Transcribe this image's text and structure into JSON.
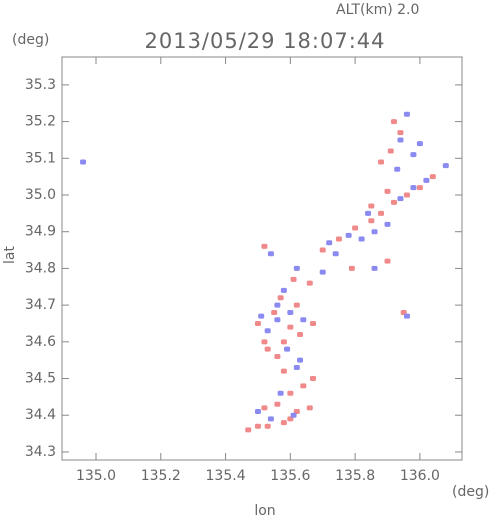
{
  "chart_data": {
    "type": "scatter",
    "title": "2013/05/29 18:07:44",
    "subtitle": "ALT(km) 2.0",
    "x_label": "lon",
    "x_unit": "(deg)",
    "y_label": "lat",
    "y_unit": "(deg)",
    "xlim": [
      134.895,
      136.13
    ],
    "ylim": [
      34.278,
      35.376
    ],
    "xticks": [
      {
        "value": 135.0,
        "label": "135.0"
      },
      135.2,
      135.4,
      135.6,
      135.8,
      {
        "value": 136.0,
        "label": "136.0"
      }
    ],
    "yticks": [
      {
        "value": 34.3,
        "label": "34.3"
      },
      34.4,
      34.5,
      34.6,
      34.7,
      34.8,
      34.9,
      {
        "value": 35.0,
        "label": "35.0"
      },
      35.1,
      35.2,
      35.3
    ],
    "series": [
      {
        "color": "#f08a8a",
        "x": [
          135.47,
          135.5,
          135.53,
          135.58,
          135.6,
          135.52,
          135.56,
          135.62,
          135.66,
          135.64,
          135.67,
          135.6,
          135.58,
          135.56,
          135.52,
          135.5,
          135.55,
          135.57,
          135.6,
          135.63,
          135.58,
          135.53,
          135.62,
          135.61,
          135.66,
          135.7,
          135.75,
          135.8,
          135.85,
          135.88,
          135.92,
          135.96,
          136.0,
          136.04,
          135.85,
          135.9,
          135.88,
          135.91,
          135.94,
          135.92,
          135.95,
          135.9,
          135.79,
          135.52,
          135.67
        ],
        "values": [
          34.36,
          34.37,
          34.37,
          34.38,
          34.39,
          34.42,
          34.43,
          34.41,
          34.42,
          34.48,
          34.5,
          34.46,
          34.52,
          34.56,
          34.6,
          34.65,
          34.68,
          34.72,
          34.64,
          34.62,
          34.6,
          34.58,
          34.7,
          34.77,
          34.76,
          34.85,
          34.88,
          34.91,
          34.93,
          34.95,
          34.98,
          35.0,
          35.02,
          35.05,
          34.97,
          35.01,
          35.09,
          35.12,
          35.17,
          35.2,
          34.68,
          34.82,
          34.8,
          34.86,
          34.65
        ]
      },
      {
        "color": "#8a8af0",
        "x": [
          134.96,
          135.5,
          135.54,
          135.61,
          135.57,
          135.62,
          135.59,
          135.53,
          135.51,
          135.56,
          135.6,
          135.64,
          135.56,
          135.58,
          135.62,
          135.54,
          135.7,
          135.72,
          135.78,
          135.82,
          135.86,
          135.9,
          135.84,
          135.94,
          135.98,
          136.02,
          136.08,
          135.93,
          135.98,
          136.0,
          135.96,
          135.94,
          135.96,
          135.86,
          135.74,
          135.63
        ],
        "values": [
          35.09,
          34.41,
          34.39,
          34.4,
          34.46,
          34.53,
          34.58,
          34.63,
          34.67,
          34.66,
          34.68,
          34.66,
          34.7,
          34.74,
          34.8,
          34.84,
          34.79,
          34.87,
          34.89,
          34.88,
          34.9,
          34.92,
          34.95,
          34.99,
          35.02,
          35.04,
          35.08,
          35.07,
          35.11,
          35.14,
          35.22,
          35.15,
          34.67,
          34.8,
          34.84,
          34.55
        ]
      }
    ]
  }
}
